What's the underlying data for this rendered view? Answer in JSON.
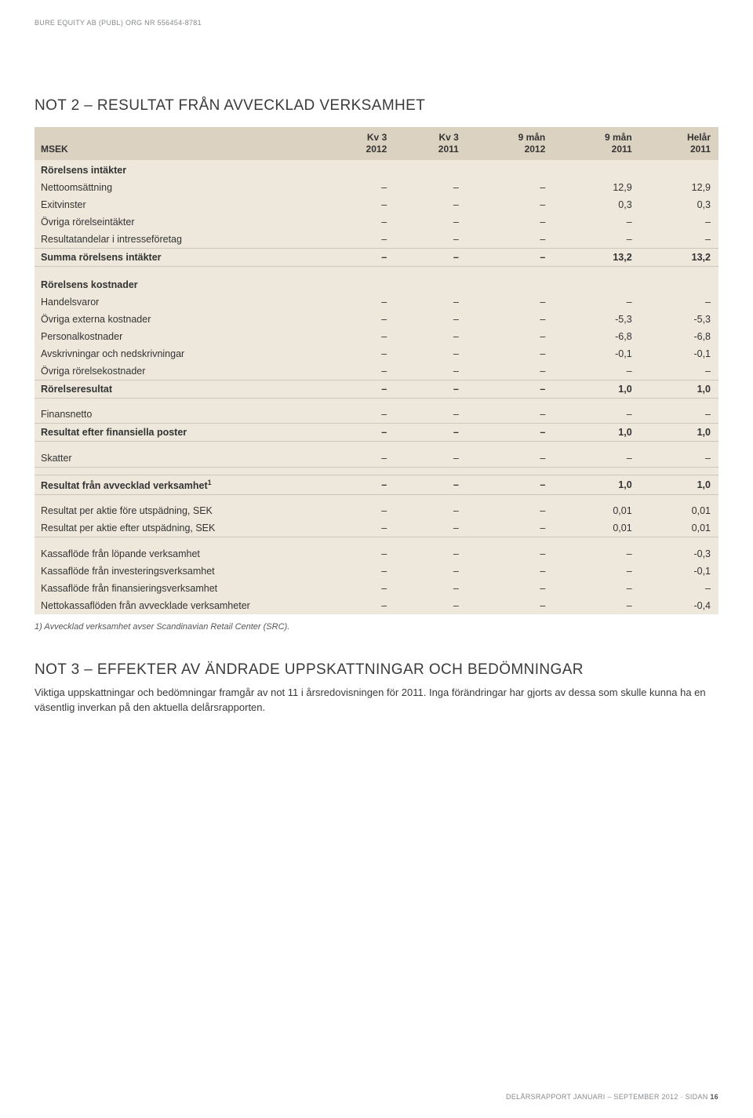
{
  "header": {
    "org": "BURE EQUITY AB (PUBL) ORG NR 556454-8781"
  },
  "not2": {
    "title": "NOT 2 – RESULTAT FRÅN AVVECKLAD VERKSAMHET",
    "columns": {
      "label": "MSEK",
      "c1a": "Kv 3",
      "c1b": "2012",
      "c2a": "Kv 3",
      "c2b": "2011",
      "c3a": "9 mån",
      "c3b": "2012",
      "c4a": "9 mån",
      "c4b": "2011",
      "c5a": "Helår",
      "c5b": "2011"
    },
    "sections": {
      "intakter_head": "Rörelsens intäkter",
      "kostnader_head": "Rörelsens kostnader"
    },
    "rows": {
      "netto": {
        "label": "Nettoomsättning",
        "v": [
          "–",
          "–",
          "–",
          "12,9",
          "12,9"
        ]
      },
      "exit": {
        "label": "Exitvinster",
        "v": [
          "–",
          "–",
          "–",
          "0,3",
          "0,3"
        ]
      },
      "ovrint": {
        "label": "Övriga rörelseintäkter",
        "v": [
          "–",
          "–",
          "–",
          "–",
          "–"
        ]
      },
      "resint": {
        "label": "Resultatandelar i intresseföretag",
        "v": [
          "–",
          "–",
          "–",
          "–",
          "–"
        ]
      },
      "summa_int": {
        "label": "Summa rörelsens intäkter",
        "v": [
          "–",
          "–",
          "–",
          "13,2",
          "13,2"
        ]
      },
      "handel": {
        "label": "Handelsvaror",
        "v": [
          "–",
          "–",
          "–",
          "–",
          "–"
        ]
      },
      "ovrext": {
        "label": "Övriga externa kostnader",
        "v": [
          "–",
          "–",
          "–",
          "-5,3",
          "-5,3"
        ]
      },
      "pers": {
        "label": "Personalkostnader",
        "v": [
          "–",
          "–",
          "–",
          "-6,8",
          "-6,8"
        ]
      },
      "avskr": {
        "label": "Avskrivningar och nedskrivningar",
        "v": [
          "–",
          "–",
          "–",
          "-0,1",
          "-0,1"
        ]
      },
      "ovrkost": {
        "label": "Övriga rörelsekostnader",
        "v": [
          "–",
          "–",
          "–",
          "–",
          "–"
        ]
      },
      "rorres": {
        "label": "Rörelseresultat",
        "v": [
          "–",
          "–",
          "–",
          "1,0",
          "1,0"
        ]
      },
      "finans": {
        "label": "Finansnetto",
        "v": [
          "–",
          "–",
          "–",
          "–",
          "–"
        ]
      },
      "resfin": {
        "label": "Resultat efter finansiella poster",
        "v": [
          "–",
          "–",
          "–",
          "1,0",
          "1,0"
        ]
      },
      "skatt": {
        "label": "Skatter",
        "v": [
          "–",
          "–",
          "–",
          "–",
          "–"
        ]
      },
      "resavv": {
        "label": "Resultat från avvecklad verksamhet",
        "sup": "1",
        "v": [
          "–",
          "–",
          "–",
          "1,0",
          "1,0"
        ]
      },
      "rpa_fore": {
        "label": "Resultat per aktie före utspädning, SEK",
        "v": [
          "–",
          "–",
          "–",
          "0,01",
          "0,01"
        ]
      },
      "rpa_efter": {
        "label": "Resultat per aktie efter utspädning, SEK",
        "v": [
          "–",
          "–",
          "–",
          "0,01",
          "0,01"
        ]
      },
      "kf_lop": {
        "label": "Kassaflöde från löpande verksamhet",
        "v": [
          "–",
          "–",
          "–",
          "–",
          "-0,3"
        ]
      },
      "kf_inv": {
        "label": "Kassaflöde från investeringsverksamhet",
        "v": [
          "–",
          "–",
          "–",
          "–",
          "-0,1"
        ]
      },
      "kf_fin": {
        "label": "Kassaflöde från finansieringsverksamhet",
        "v": [
          "–",
          "–",
          "–",
          "–",
          "–"
        ]
      },
      "nettokf": {
        "label": "Nettokassaflöden från avvecklade verksamheter",
        "v": [
          "–",
          "–",
          "–",
          "–",
          "-0,4"
        ]
      }
    },
    "footnote": "1) Avvecklad verksamhet avser Scandinavian Retail Center (SRC)."
  },
  "not3": {
    "title": "NOT 3 – EFFEKTER AV ÄNDRADE UPPSKATTNINGAR OCH BEDÖMNINGAR",
    "body": "Viktiga uppskattningar och bedömningar framgår av not 11 i årsredovisningen för 2011. Inga förändringar har gjorts av dessa som skulle kunna ha en väsentlig inverkan på den aktuella delårsrapporten."
  },
  "footer": {
    "text": "DELÅRSRAPPORT JANUARI – SEPTEMBER 2012 · SIDAN ",
    "page": "16"
  }
}
